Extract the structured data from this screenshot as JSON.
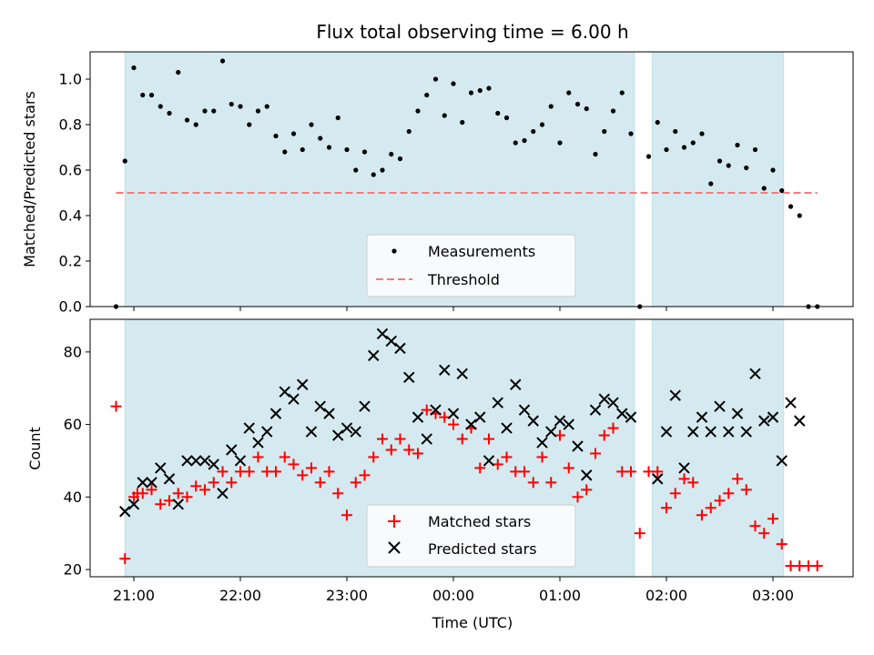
{
  "chart_data": {
    "title": "Flux total observing time = 6.00 h",
    "xlabel": "Time (UTC)",
    "x_tick_labels": [
      "21:00",
      "22:00",
      "23:00",
      "00:00",
      "01:00",
      "02:00",
      "03:00"
    ],
    "observing_windows": [
      [
        "20:55",
        "01:42"
      ],
      [
        "01:52",
        "03:06"
      ]
    ],
    "colors": {
      "window": "#d4eaf0",
      "threshold": "#f47b7b",
      "matched": "#ff0000",
      "predicted": "#000000",
      "measurements": "#000000"
    },
    "top": {
      "type": "scatter",
      "ylabel": "Matched/Predicted stars",
      "ylim": [
        0,
        1.12
      ],
      "yticks": [
        "0.0",
        "0.2",
        "0.4",
        "0.6",
        "0.8",
        "1.0"
      ],
      "legend": [
        "Measurements",
        "Threshold"
      ],
      "threshold": 0.5,
      "threshold_range": [
        "20:50",
        "03:25"
      ],
      "x": [
        "20:50",
        "20:55",
        "21:00",
        "21:05",
        "21:10",
        "21:15",
        "21:20",
        "21:25",
        "21:30",
        "21:35",
        "21:40",
        "21:45",
        "21:50",
        "21:55",
        "22:00",
        "22:05",
        "22:10",
        "22:15",
        "22:20",
        "22:25",
        "22:30",
        "22:35",
        "22:40",
        "22:45",
        "22:50",
        "22:55",
        "23:00",
        "23:05",
        "23:10",
        "23:15",
        "23:20",
        "23:25",
        "23:30",
        "23:35",
        "23:40",
        "23:45",
        "23:50",
        "23:55",
        "00:00",
        "00:05",
        "00:10",
        "00:15",
        "00:20",
        "00:25",
        "00:30",
        "00:35",
        "00:40",
        "00:45",
        "00:50",
        "00:55",
        "01:00",
        "01:05",
        "01:10",
        "01:15",
        "01:20",
        "01:25",
        "01:30",
        "01:35",
        "01:40",
        "01:45",
        "01:50",
        "01:55",
        "02:00",
        "02:05",
        "02:10",
        "02:15",
        "02:20",
        "02:25",
        "02:30",
        "02:35",
        "02:40",
        "02:45",
        "02:50",
        "02:55",
        "03:00",
        "03:05",
        "03:10",
        "03:15",
        "03:20",
        "03:25"
      ],
      "y": [
        0.0,
        0.64,
        1.05,
        0.93,
        0.93,
        0.88,
        0.85,
        1.03,
        0.82,
        0.8,
        0.86,
        0.86,
        1.08,
        0.89,
        0.88,
        0.8,
        0.86,
        0.88,
        0.75,
        0.68,
        0.76,
        0.69,
        0.8,
        0.74,
        0.7,
        0.83,
        0.69,
        0.6,
        0.68,
        0.58,
        0.6,
        0.67,
        0.65,
        0.77,
        0.86,
        0.93,
        1.0,
        0.84,
        0.98,
        0.81,
        0.94,
        0.95,
        0.96,
        0.85,
        0.83,
        0.72,
        0.73,
        0.77,
        0.8,
        0.88,
        0.72,
        0.94,
        0.89,
        0.87,
        0.67,
        0.77,
        0.86,
        0.94,
        0.76,
        0.0,
        0.66,
        0.81,
        0.69,
        0.77,
        0.7,
        0.72,
        0.76,
        0.54,
        0.64,
        0.62,
        0.71,
        0.61,
        0.69,
        0.52,
        0.6,
        0.51,
        0.44,
        0.4,
        0.0,
        0.0
      ]
    },
    "bottom": {
      "type": "scatter",
      "ylabel": "Count",
      "ylim": [
        18,
        89
      ],
      "yticks": [
        "20",
        "40",
        "60",
        "80"
      ],
      "legend": [
        "Matched stars",
        "Predicted stars"
      ],
      "matched": {
        "x": [
          "20:50",
          "20:55",
          "21:00",
          "21:02",
          "21:05",
          "21:10",
          "21:15",
          "21:20",
          "21:25",
          "21:30",
          "21:35",
          "21:40",
          "21:45",
          "21:50",
          "21:55",
          "22:00",
          "22:05",
          "22:10",
          "22:15",
          "22:20",
          "22:25",
          "22:30",
          "22:35",
          "22:40",
          "22:45",
          "22:50",
          "22:55",
          "23:00",
          "23:05",
          "23:10",
          "23:15",
          "23:20",
          "23:25",
          "23:30",
          "23:35",
          "23:40",
          "23:45",
          "23:50",
          "23:55",
          "00:00",
          "00:05",
          "00:10",
          "00:15",
          "00:20",
          "00:25",
          "00:30",
          "00:35",
          "00:40",
          "00:45",
          "00:50",
          "00:55",
          "01:00",
          "01:05",
          "01:10",
          "01:15",
          "01:20",
          "01:25",
          "01:30",
          "01:35",
          "01:40",
          "01:45",
          "01:50",
          "01:55",
          "02:00",
          "02:05",
          "02:10",
          "02:15",
          "02:20",
          "02:25",
          "02:30",
          "02:35",
          "02:40",
          "02:45",
          "02:50",
          "02:55",
          "03:00",
          "03:05",
          "03:10",
          "03:15",
          "03:20",
          "03:25"
        ],
        "y": [
          65,
          23,
          40,
          41,
          41,
          42,
          38,
          39,
          41,
          40,
          43,
          42,
          44,
          47,
          44,
          47,
          47,
          51,
          47,
          47,
          51,
          49,
          46,
          48,
          44,
          47,
          41,
          35,
          44,
          46,
          51,
          56,
          53,
          56,
          53,
          52,
          64,
          63,
          62,
          60,
          56,
          59,
          48,
          56,
          49,
          51,
          47,
          47,
          44,
          51,
          44,
          57,
          48,
          40,
          42,
          52,
          57,
          59,
          47,
          47,
          30,
          47,
          47,
          37,
          41,
          45,
          44,
          35,
          37,
          39,
          41,
          45,
          42,
          32,
          30,
          34,
          27,
          21,
          21,
          21,
          21
        ]
      },
      "predicted": {
        "x": [
          "20:55",
          "21:00",
          "21:05",
          "21:10",
          "21:15",
          "21:20",
          "21:25",
          "21:30",
          "21:35",
          "21:40",
          "21:45",
          "21:50",
          "21:55",
          "22:00",
          "22:05",
          "22:10",
          "22:15",
          "22:20",
          "22:25",
          "22:30",
          "22:35",
          "22:40",
          "22:45",
          "22:50",
          "22:55",
          "23:00",
          "23:05",
          "23:10",
          "23:15",
          "23:20",
          "23:25",
          "23:30",
          "23:35",
          "23:40",
          "23:45",
          "23:50",
          "23:55",
          "00:00",
          "00:05",
          "00:10",
          "00:15",
          "00:20",
          "00:25",
          "00:30",
          "00:35",
          "00:40",
          "00:45",
          "00:50",
          "00:55",
          "01:00",
          "01:05",
          "01:10",
          "01:15",
          "01:20",
          "01:25",
          "01:30",
          "01:35",
          "01:40",
          "01:55",
          "02:00",
          "02:05",
          "02:10",
          "02:15",
          "02:20",
          "02:25",
          "02:30",
          "02:35",
          "02:40",
          "02:45",
          "02:50",
          "02:55",
          "03:00",
          "03:05",
          "03:10",
          "03:15"
        ],
        "y": [
          36,
          38,
          44,
          44,
          48,
          45,
          38,
          50,
          50,
          50,
          49,
          41,
          53,
          50,
          59,
          55,
          58,
          63,
          69,
          67,
          71,
          58,
          65,
          63,
          57,
          59,
          58,
          65,
          79,
          85,
          83,
          81,
          73,
          62,
          56,
          64,
          75,
          63,
          74,
          60,
          62,
          50,
          66,
          59,
          71,
          64,
          61,
          55,
          58,
          61,
          60,
          54,
          46,
          64,
          67,
          66,
          63,
          62,
          45,
          58,
          68,
          48,
          58,
          62,
          58,
          65,
          58,
          63,
          58,
          74,
          61,
          62,
          50,
          66,
          61
        ]
      }
    }
  }
}
